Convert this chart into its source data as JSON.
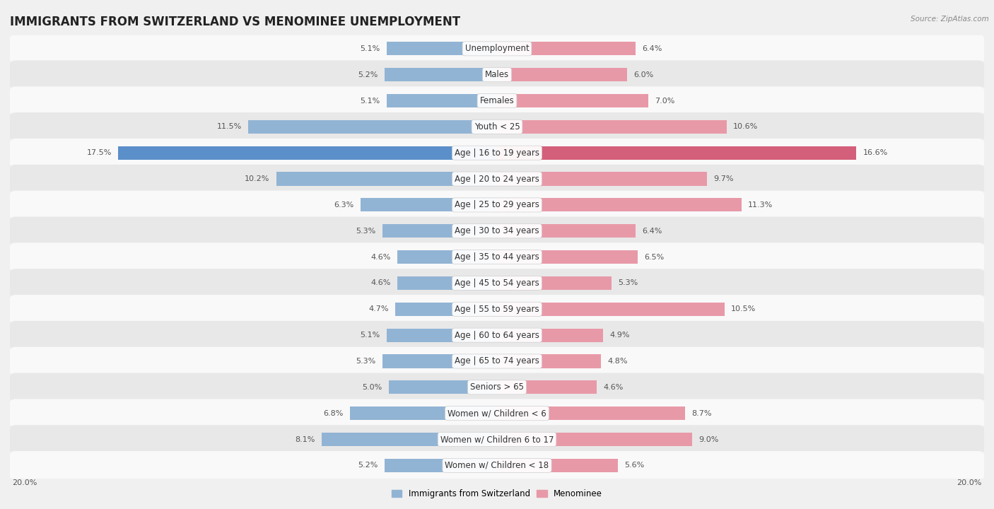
{
  "title": "IMMIGRANTS FROM SWITZERLAND VS MENOMINEE UNEMPLOYMENT",
  "source": "Source: ZipAtlas.com",
  "categories": [
    "Unemployment",
    "Males",
    "Females",
    "Youth < 25",
    "Age | 16 to 19 years",
    "Age | 20 to 24 years",
    "Age | 25 to 29 years",
    "Age | 30 to 34 years",
    "Age | 35 to 44 years",
    "Age | 45 to 54 years",
    "Age | 55 to 59 years",
    "Age | 60 to 64 years",
    "Age | 65 to 74 years",
    "Seniors > 65",
    "Women w/ Children < 6",
    "Women w/ Children 6 to 17",
    "Women w/ Children < 18"
  ],
  "left_values": [
    5.1,
    5.2,
    5.1,
    11.5,
    17.5,
    10.2,
    6.3,
    5.3,
    4.6,
    4.6,
    4.7,
    5.1,
    5.3,
    5.0,
    6.8,
    8.1,
    5.2
  ],
  "right_values": [
    6.4,
    6.0,
    7.0,
    10.6,
    16.6,
    9.7,
    11.3,
    6.4,
    6.5,
    5.3,
    10.5,
    4.9,
    4.8,
    4.6,
    8.7,
    9.0,
    5.6
  ],
  "left_color": "#92b4d4",
  "right_color": "#e899a8",
  "highlight_left_color": "#5b8fc9",
  "highlight_right_color": "#d45f7a",
  "highlight_index": 4,
  "max_value": 20.0,
  "legend_left": "Immigrants from Switzerland",
  "legend_right": "Menominee",
  "bg_color": "#f0f0f0",
  "row_bg_white": "#f9f9f9",
  "row_bg_gray": "#e8e8e8",
  "title_fontsize": 12,
  "label_fontsize": 8.5,
  "value_fontsize": 8.0
}
